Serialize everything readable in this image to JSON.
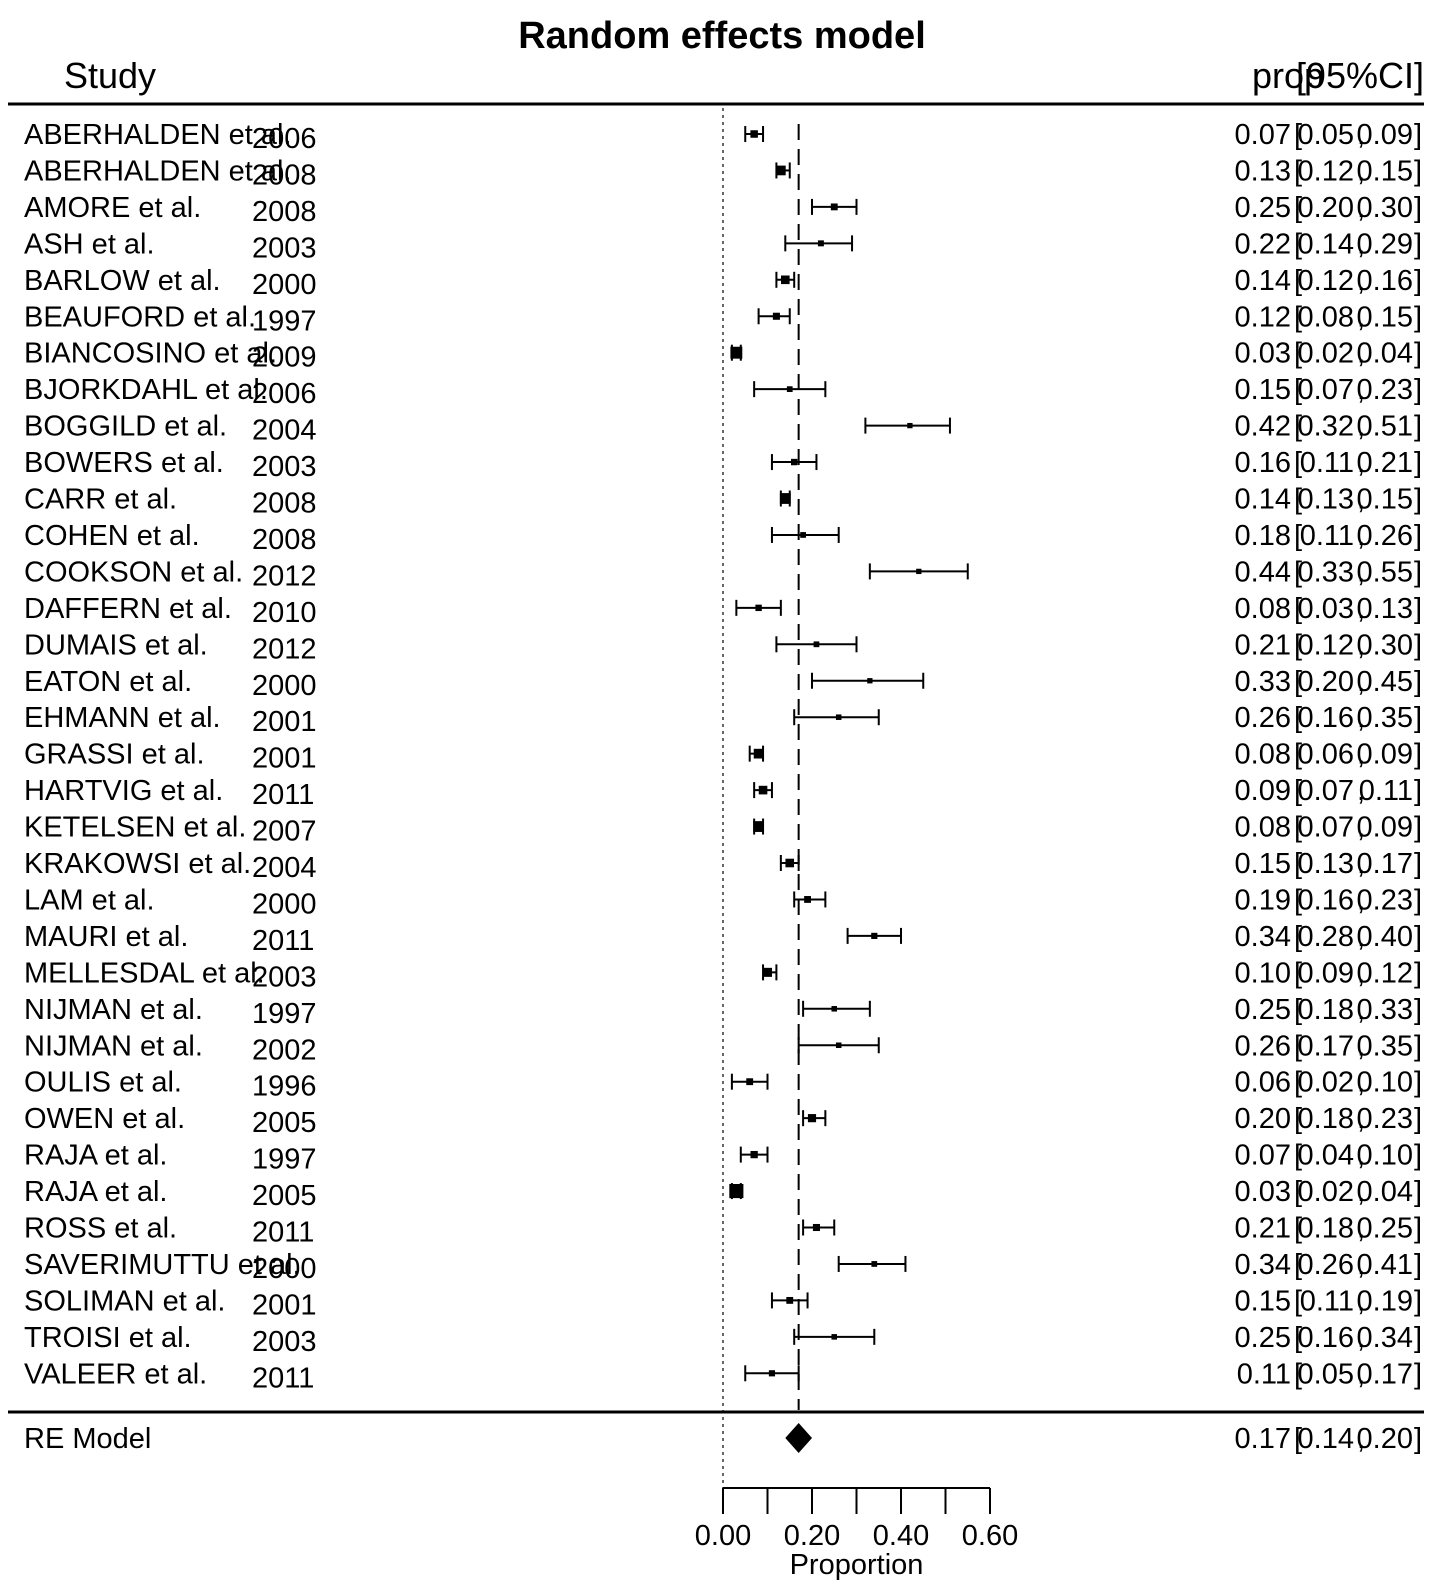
{
  "chart_data": {
    "type": "forest",
    "title": "Random effects model",
    "header_left": "Study",
    "header_right": "prop",
    "header_ci": "[95%CI]",
    "xlabel": "Proportion",
    "xlim": [
      0.0,
      0.6
    ],
    "xticks": [
      0.0,
      0.1,
      0.2,
      0.3,
      0.4,
      0.5,
      0.6
    ],
    "xtick_labels": [
      "0.00",
      "0.20",
      "0.40",
      "0.60"
    ],
    "xtick_label_values": [
      0.0,
      0.2,
      0.4,
      0.6
    ],
    "null_line": 0.0,
    "studies": [
      {
        "name": "ABERHALDEN et al.",
        "year": "2006",
        "prop": "0.07",
        "low": "0.05",
        "high": "0.09",
        "weight": 2.5
      },
      {
        "name": "ABERHALDEN et al.",
        "year": "2008",
        "prop": "0.13",
        "low": "0.12",
        "high": "0.15",
        "weight": 3.5
      },
      {
        "name": "AMORE et al.",
        "year": "2008",
        "prop": "0.25",
        "low": "0.20",
        "high": "0.30",
        "weight": 2.2
      },
      {
        "name": "ASH et al.",
        "year": "2003",
        "prop": "0.22",
        "low": "0.14",
        "high": "0.29",
        "weight": 1.8
      },
      {
        "name": "BARLOW et al.",
        "year": "2000",
        "prop": "0.14",
        "low": "0.12",
        "high": "0.16",
        "weight": 3.0
      },
      {
        "name": "BEAUFORD et al.",
        "year": "1997",
        "prop": "0.12",
        "low": "0.08",
        "high": "0.15",
        "weight": 2.3
      },
      {
        "name": "BIANCOSINO et al.",
        "year": "2009",
        "prop": "0.03",
        "low": "0.02",
        "high": "0.04",
        "weight": 4.5
      },
      {
        "name": "BJORKDAHL et al.",
        "year": "2006",
        "prop": "0.15",
        "low": "0.07",
        "high": "0.23",
        "weight": 1.7
      },
      {
        "name": "BOGGILD et al.",
        "year": "2004",
        "prop": "0.42",
        "low": "0.32",
        "high": "0.51",
        "weight": 1.5
      },
      {
        "name": "BOWERS et al.",
        "year": "2003",
        "prop": "0.16",
        "low": "0.11",
        "high": "0.21",
        "weight": 2.0
      },
      {
        "name": "CARR et al.",
        "year": "2008",
        "prop": "0.14",
        "low": "0.13",
        "high": "0.15",
        "weight": 4.0
      },
      {
        "name": "COHEN et al.",
        "year": "2008",
        "prop": "0.18",
        "low": "0.11",
        "high": "0.26",
        "weight": 1.7
      },
      {
        "name": "COOKSON et al.",
        "year": "2012",
        "prop": "0.44",
        "low": "0.33",
        "high": "0.55",
        "weight": 1.5
      },
      {
        "name": "DAFFERN et al.",
        "year": "2010",
        "prop": "0.08",
        "low": "0.03",
        "high": "0.13",
        "weight": 2.0
      },
      {
        "name": "DUMAIS et al.",
        "year": "2012",
        "prop": "0.21",
        "low": "0.12",
        "high": "0.30",
        "weight": 1.7
      },
      {
        "name": "EATON et al.",
        "year": "2000",
        "prop": "0.33",
        "low": "0.20",
        "high": "0.45",
        "weight": 1.5
      },
      {
        "name": "EHMANN et al.",
        "year": "2001",
        "prop": "0.26",
        "low": "0.16",
        "high": "0.35",
        "weight": 1.6
      },
      {
        "name": "GRASSI et al.",
        "year": "2001",
        "prop": "0.08",
        "low": "0.06",
        "high": "0.09",
        "weight": 3.5
      },
      {
        "name": "HARTVIG et al.",
        "year": "2011",
        "prop": "0.09",
        "low": "0.07",
        "high": "0.11",
        "weight": 3.0
      },
      {
        "name": "KETELSEN et al.",
        "year": "2007",
        "prop": "0.08",
        "low": "0.07",
        "high": "0.09",
        "weight": 4.0
      },
      {
        "name": "KRAKOWSI et al.",
        "year": "2004",
        "prop": "0.15",
        "low": "0.13",
        "high": "0.17",
        "weight": 3.0
      },
      {
        "name": "LAM et al.",
        "year": "2000",
        "prop": "0.19",
        "low": "0.16",
        "high": "0.23",
        "weight": 2.2
      },
      {
        "name": "MAURI et al.",
        "year": "2011",
        "prop": "0.34",
        "low": "0.28",
        "high": "0.40",
        "weight": 1.9
      },
      {
        "name": "MELLESDAL et al.",
        "year": "2003",
        "prop": "0.10",
        "low": "0.09",
        "high": "0.12",
        "weight": 3.2
      },
      {
        "name": "NIJMAN et al.",
        "year": "1997",
        "prop": "0.25",
        "low": "0.18",
        "high": "0.33",
        "weight": 1.6
      },
      {
        "name": "NIJMAN et al.",
        "year": "2002",
        "prop": "0.26",
        "low": "0.17",
        "high": "0.35",
        "weight": 1.6
      },
      {
        "name": "OULIS et al.",
        "year": "1996",
        "prop": "0.06",
        "low": "0.02",
        "high": "0.10",
        "weight": 2.2
      },
      {
        "name": "OWEN et al.",
        "year": "2005",
        "prop": "0.20",
        "low": "0.18",
        "high": "0.23",
        "weight": 2.8
      },
      {
        "name": "RAJA et al.",
        "year": "1997",
        "prop": "0.07",
        "low": "0.04",
        "high": "0.10",
        "weight": 2.4
      },
      {
        "name": "RAJA et al.",
        "year": "2005",
        "prop": "0.03",
        "low": "0.02",
        "high": "0.04",
        "weight": 5.5
      },
      {
        "name": "ROSS et al.",
        "year": "2011",
        "prop": "0.21",
        "low": "0.18",
        "high": "0.25",
        "weight": 2.3
      },
      {
        "name": "SAVERIMUTTU et al.",
        "year": "2000",
        "prop": "0.34",
        "low": "0.26",
        "high": "0.41",
        "weight": 1.7
      },
      {
        "name": "SOLIMAN et al.",
        "year": "2001",
        "prop": "0.15",
        "low": "0.11",
        "high": "0.19",
        "weight": 2.2
      },
      {
        "name": "TROISI et al.",
        "year": "2003",
        "prop": "0.25",
        "low": "0.16",
        "high": "0.34",
        "weight": 1.6
      },
      {
        "name": "VALEER et al.",
        "year": "2011",
        "prop": "0.11",
        "low": "0.05",
        "high": "0.17",
        "weight": 1.9
      }
    ],
    "summary": {
      "name": "RE Model",
      "prop": "0.17",
      "low": "0.14",
      "high": "0.20"
    }
  }
}
